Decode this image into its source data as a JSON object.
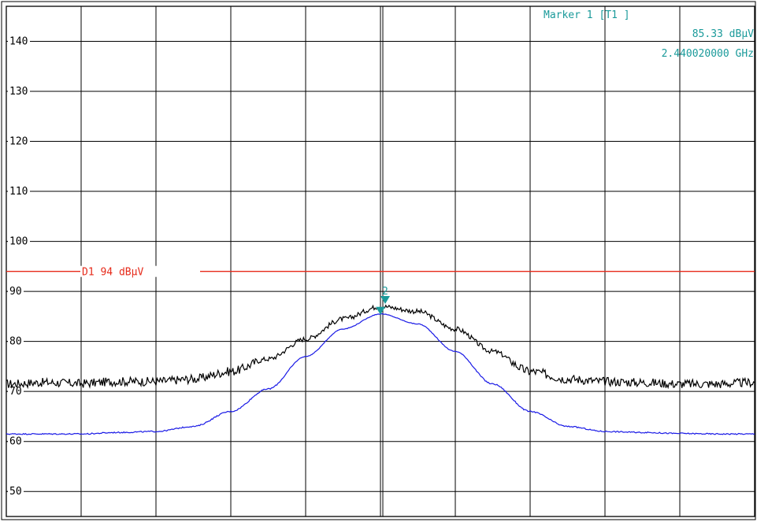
{
  "colors": {
    "background": "#ffffff",
    "grid": "#000000",
    "trace_max": "#000000",
    "trace_avg": "#1a1ae6",
    "display_line": "#e62a1a",
    "marker": "#1a9a9a"
  },
  "marker_readout": {
    "title": "Marker 1 [T1 ]",
    "level": "85.33 dBµV",
    "frequency": "2.440020000 GHz"
  },
  "display_line": {
    "label": "D1 94 dBµV",
    "value": 94
  },
  "marker_label": "2",
  "chart_data": {
    "type": "line",
    "title": "",
    "xlabel": "",
    "ylabel": "",
    "ylim": [
      45,
      147
    ],
    "y_ticks": [
      140,
      130,
      120,
      110,
      100,
      90,
      80,
      70,
      60,
      50
    ],
    "y_tick_labels": [
      "140",
      "130",
      "120",
      "110",
      "100",
      "90",
      "80",
      "70",
      "60",
      "50"
    ],
    "x_divisions": 10,
    "grid": true,
    "series": [
      {
        "x": [
          0,
          0.5,
          1,
          1.5,
          2,
          2.5,
          3,
          3.5,
          4,
          4.5,
          5,
          5.5,
          6,
          6.5,
          7,
          7.5,
          8,
          8.5,
          9,
          9.5,
          10
        ],
        "values": [
          71.5,
          71.8,
          71.6,
          72.0,
          72.0,
          72.5,
          74.0,
          76.5,
          80.5,
          84.5,
          87.0,
          86.0,
          82.5,
          78.0,
          74.0,
          72.5,
          72.0,
          71.8,
          71.5,
          71.5,
          71.8
        ]
      },
      {
        "x": [
          0,
          0.5,
          1,
          1.5,
          2,
          2.5,
          3,
          3.5,
          4,
          4.5,
          5,
          5.5,
          6,
          6.5,
          7,
          7.5,
          8,
          8.5,
          9,
          9.5,
          10
        ],
        "values": [
          61.5,
          61.5,
          61.5,
          61.8,
          62.0,
          63.0,
          66.0,
          70.5,
          77.0,
          82.5,
          85.5,
          83.5,
          78.0,
          71.5,
          66.0,
          63.0,
          62.0,
          61.8,
          61.6,
          61.5,
          61.5
        ]
      }
    ],
    "markers": [
      {
        "name": "1",
        "x": 5,
        "y": 85.33
      },
      {
        "name": "2",
        "x": 5,
        "y": 87.5
      }
    ]
  }
}
